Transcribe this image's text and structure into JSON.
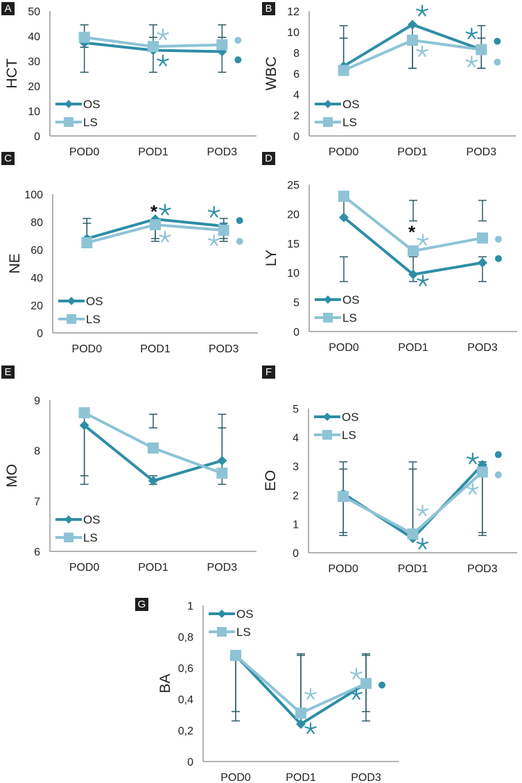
{
  "colors": {
    "OS": "#2e8ea6",
    "LS": "#8ec3d6",
    "errorbar": "#2f5a66",
    "axis": "#999999",
    "sig_black": "#111111"
  },
  "legend": [
    "OS",
    "LS"
  ],
  "chart_data": [
    {
      "panel": "A",
      "type": "line",
      "ylabel": "HCT",
      "categories": [
        "POD0",
        "POD1",
        "POD3"
      ],
      "ylim": [
        0,
        50
      ],
      "yticks": [
        0,
        10,
        20,
        30,
        40,
        50
      ],
      "ytick_labels": [
        "0",
        "10",
        "20",
        "30",
        "40",
        "50"
      ],
      "legend_position": "bottom-left",
      "series": [
        {
          "name": "OS",
          "values": [
            37.3,
            34.3,
            33.8
          ],
          "err_low": [
            25.5,
            25.5,
            25.5
          ],
          "err_high": [
            35.5,
            39.5,
            39.5
          ]
        },
        {
          "name": "LS",
          "values": [
            39.5,
            35.8,
            36.5
          ],
          "err_low": [
            35.5,
            39.5,
            39.5
          ],
          "err_high": [
            44.5,
            44.5,
            44.5
          ]
        }
      ],
      "annotations": [
        {
          "cat": 1,
          "series": "LS",
          "symbol": "star",
          "value": 40.5
        },
        {
          "cat": 1,
          "series": "OS",
          "symbol": "star",
          "value": 30
        },
        {
          "cat": 2,
          "series": "LS",
          "symbol": "dot",
          "value": 38.3
        },
        {
          "cat": 2,
          "series": "OS",
          "symbol": "dot",
          "value": 30.5
        }
      ]
    },
    {
      "panel": "B",
      "type": "line",
      "ylabel": "WBC",
      "categories": [
        "POD0",
        "POD1",
        "POD3"
      ],
      "ylim": [
        0,
        12
      ],
      "yticks": [
        0,
        2,
        4,
        6,
        8,
        10,
        12
      ],
      "ytick_labels": [
        "0",
        "2",
        "4",
        "6",
        "8",
        "10",
        "12"
      ],
      "legend_position": "bottom-left",
      "series": [
        {
          "name": "OS",
          "values": [
            6.7,
            10.7,
            8.3
          ],
          "err_low": [
            6.7,
            6.5,
            6.5
          ],
          "err_high": [
            10.6,
            10.7,
            10.6
          ]
        },
        {
          "name": "LS",
          "values": [
            6.3,
            9.2,
            8.3
          ],
          "err_low": [
            6.3,
            6.5,
            6.5
          ],
          "err_high": [
            9.4,
            9.2,
            9.4
          ]
        }
      ],
      "annotations": [
        {
          "cat": 1,
          "series": "OS",
          "symbol": "star",
          "value": 12
        },
        {
          "cat": 1,
          "series": "LS",
          "symbol": "star",
          "value": 8.1
        },
        {
          "cat": 2,
          "series": "OS",
          "symbol": "star",
          "value": 9.8,
          "side": "left"
        },
        {
          "cat": 2,
          "series": "LS",
          "symbol": "star",
          "value": 7.1,
          "side": "left"
        },
        {
          "cat": 2,
          "series": "OS",
          "symbol": "dot",
          "value": 9.1
        },
        {
          "cat": 2,
          "series": "LS",
          "symbol": "dot",
          "value": 7.1
        }
      ]
    },
    {
      "panel": "C",
      "type": "line",
      "ylabel": "NE",
      "categories": [
        "POD0",
        "POD1",
        "POD3"
      ],
      "ylim": [
        0,
        100
      ],
      "yticks": [
        0,
        20,
        40,
        60,
        80,
        100
      ],
      "ytick_labels": [
        "0",
        "20",
        "40",
        "60",
        "80",
        "100"
      ],
      "legend_position": "bottom-left",
      "series": [
        {
          "name": "OS",
          "values": [
            68,
            82,
            77
          ],
          "err_low": [
            68,
            66,
            66
          ],
          "err_high": [
            82.5,
            82,
            82.5
          ]
        },
        {
          "name": "LS",
          "values": [
            65,
            78,
            74
          ],
          "err_low": [
            65,
            68,
            68
          ],
          "err_high": [
            79,
            78,
            79
          ]
        }
      ],
      "annotations": [
        {
          "cat": 1,
          "series": "all",
          "symbol": "black-asterisk",
          "value": 90
        },
        {
          "cat": 1,
          "series": "OS",
          "symbol": "star",
          "value": 88.5
        },
        {
          "cat": 1,
          "series": "LS",
          "symbol": "star",
          "value": 69
        },
        {
          "cat": 2,
          "series": "OS",
          "symbol": "star",
          "value": 87,
          "side": "left"
        },
        {
          "cat": 2,
          "series": "LS",
          "symbol": "star",
          "value": 66.5,
          "side": "left"
        },
        {
          "cat": 2,
          "series": "OS",
          "symbol": "dot",
          "value": 81
        },
        {
          "cat": 2,
          "series": "LS",
          "symbol": "dot",
          "value": 66
        }
      ]
    },
    {
      "panel": "D",
      "type": "line",
      "ylabel": "LY",
      "categories": [
        "POD0",
        "POD1",
        "POD3"
      ],
      "ylim": [
        0,
        25
      ],
      "yticks": [
        0,
        5,
        10,
        15,
        20,
        25
      ],
      "ytick_labels": [
        "0",
        "5",
        "10",
        "15",
        "20",
        "25"
      ],
      "legend_position": "bottom-left",
      "series": [
        {
          "name": "OS",
          "values": [
            19.4,
            9.7,
            11.7
          ],
          "err_low": [
            8.5,
            8.5,
            8.5
          ],
          "err_high": [
            12.7,
            12.7,
            12.7
          ]
        },
        {
          "name": "LS",
          "values": [
            23,
            13.7,
            15.9
          ],
          "err_low": [
            19.4,
            18.8,
            18.8
          ],
          "err_high": [
            23,
            22.3,
            22.3
          ]
        }
      ],
      "annotations": [
        {
          "cat": 1,
          "series": "all",
          "symbol": "black-asterisk",
          "value": 17.5
        },
        {
          "cat": 1,
          "series": "LS",
          "symbol": "star",
          "value": 15.5
        },
        {
          "cat": 1,
          "series": "OS",
          "symbol": "star",
          "value": 8.6
        },
        {
          "cat": 2,
          "series": "LS",
          "symbol": "dot",
          "value": 15.7
        },
        {
          "cat": 2,
          "series": "OS",
          "symbol": "dot",
          "value": 12.4
        }
      ]
    },
    {
      "panel": "E",
      "type": "line",
      "ylabel": "MO",
      "categories": [
        "POD0",
        "POD1",
        "POD3"
      ],
      "ylim": [
        6,
        9
      ],
      "yticks": [
        6,
        7,
        8,
        9
      ],
      "ytick_labels": [
        "6",
        "7",
        "8",
        "9"
      ],
      "legend_position": "bottom-left",
      "series": [
        {
          "name": "OS",
          "values": [
            8.5,
            7.4,
            7.8
          ],
          "err_low": [
            7.33,
            7.33,
            7.33
          ],
          "err_high": [
            8.5,
            7.5,
            8.45
          ]
        },
        {
          "name": "LS",
          "values": [
            8.75,
            8.05,
            7.55
          ],
          "err_low": [
            7.5,
            8.45,
            7.55
          ],
          "err_high": [
            8.75,
            8.72,
            8.72
          ]
        }
      ],
      "annotations": []
    },
    {
      "panel": "F",
      "type": "line",
      "ylabel": "EO",
      "categories": [
        "POD0",
        "POD1",
        "POD3"
      ],
      "ylim": [
        0,
        5
      ],
      "yticks": [
        0,
        1,
        2,
        3,
        4,
        5
      ],
      "ytick_labels": [
        "0",
        "1",
        "2",
        "3",
        "4",
        "5"
      ],
      "legend_position": "top-left",
      "series": [
        {
          "name": "OS",
          "values": [
            2.05,
            0.5,
            3.05
          ],
          "err_low": [
            0.6,
            0.6,
            0.6
          ],
          "err_high": [
            3.15,
            3.15,
            3.15
          ]
        },
        {
          "name": "LS",
          "values": [
            1.95,
            0.65,
            2.8
          ],
          "err_low": [
            0.7,
            0.65,
            0.7
          ],
          "err_high": [
            2.9,
            2.9,
            3.0
          ]
        }
      ],
      "annotations": [
        {
          "cat": 1,
          "series": "LS",
          "symbol": "star",
          "value": 1.45
        },
        {
          "cat": 1,
          "series": "OS",
          "symbol": "star",
          "value": 0.3
        },
        {
          "cat": 2,
          "series": "OS",
          "symbol": "star",
          "value": 3.25,
          "side": "left"
        },
        {
          "cat": 2,
          "series": "LS",
          "symbol": "star",
          "value": 2.2,
          "side": "left"
        },
        {
          "cat": 2,
          "series": "OS",
          "symbol": "dot",
          "value": 3.4
        },
        {
          "cat": 2,
          "series": "LS",
          "symbol": "dot",
          "value": 2.7
        }
      ]
    },
    {
      "panel": "G",
      "type": "line",
      "ylabel": "BA",
      "categories": [
        "POD0",
        "POD1",
        "POD3"
      ],
      "ylim": [
        0,
        1
      ],
      "yticks": [
        0,
        0.2,
        0.4,
        0.6,
        0.8,
        1
      ],
      "ytick_labels": [
        "0",
        "0,2",
        "0,4",
        "0,6",
        "0,8",
        "1"
      ],
      "legend_position": "top-left",
      "series": [
        {
          "name": "OS",
          "values": [
            0.68,
            0.24,
            0.5
          ],
          "err_low": [
            0.26,
            0.24,
            0.26
          ],
          "err_high": [
            0.68,
            0.68,
            0.68
          ]
        },
        {
          "name": "LS",
          "values": [
            0.68,
            0.31,
            0.5
          ],
          "err_low": [
            0.32,
            0.31,
            0.32
          ],
          "err_high": [
            0.68,
            0.69,
            0.69
          ]
        }
      ],
      "annotations": [
        {
          "cat": 1,
          "series": "LS",
          "symbol": "star",
          "value": 0.43
        },
        {
          "cat": 1,
          "series": "OS",
          "symbol": "star",
          "value": 0.21
        },
        {
          "cat": 2,
          "series": "LS",
          "symbol": "star",
          "value": 0.56,
          "side": "left"
        },
        {
          "cat": 2,
          "series": "OS",
          "symbol": "star",
          "value": 0.43,
          "side": "left"
        },
        {
          "cat": 2,
          "series": "OS",
          "symbol": "dot",
          "value": 0.49
        }
      ]
    }
  ]
}
